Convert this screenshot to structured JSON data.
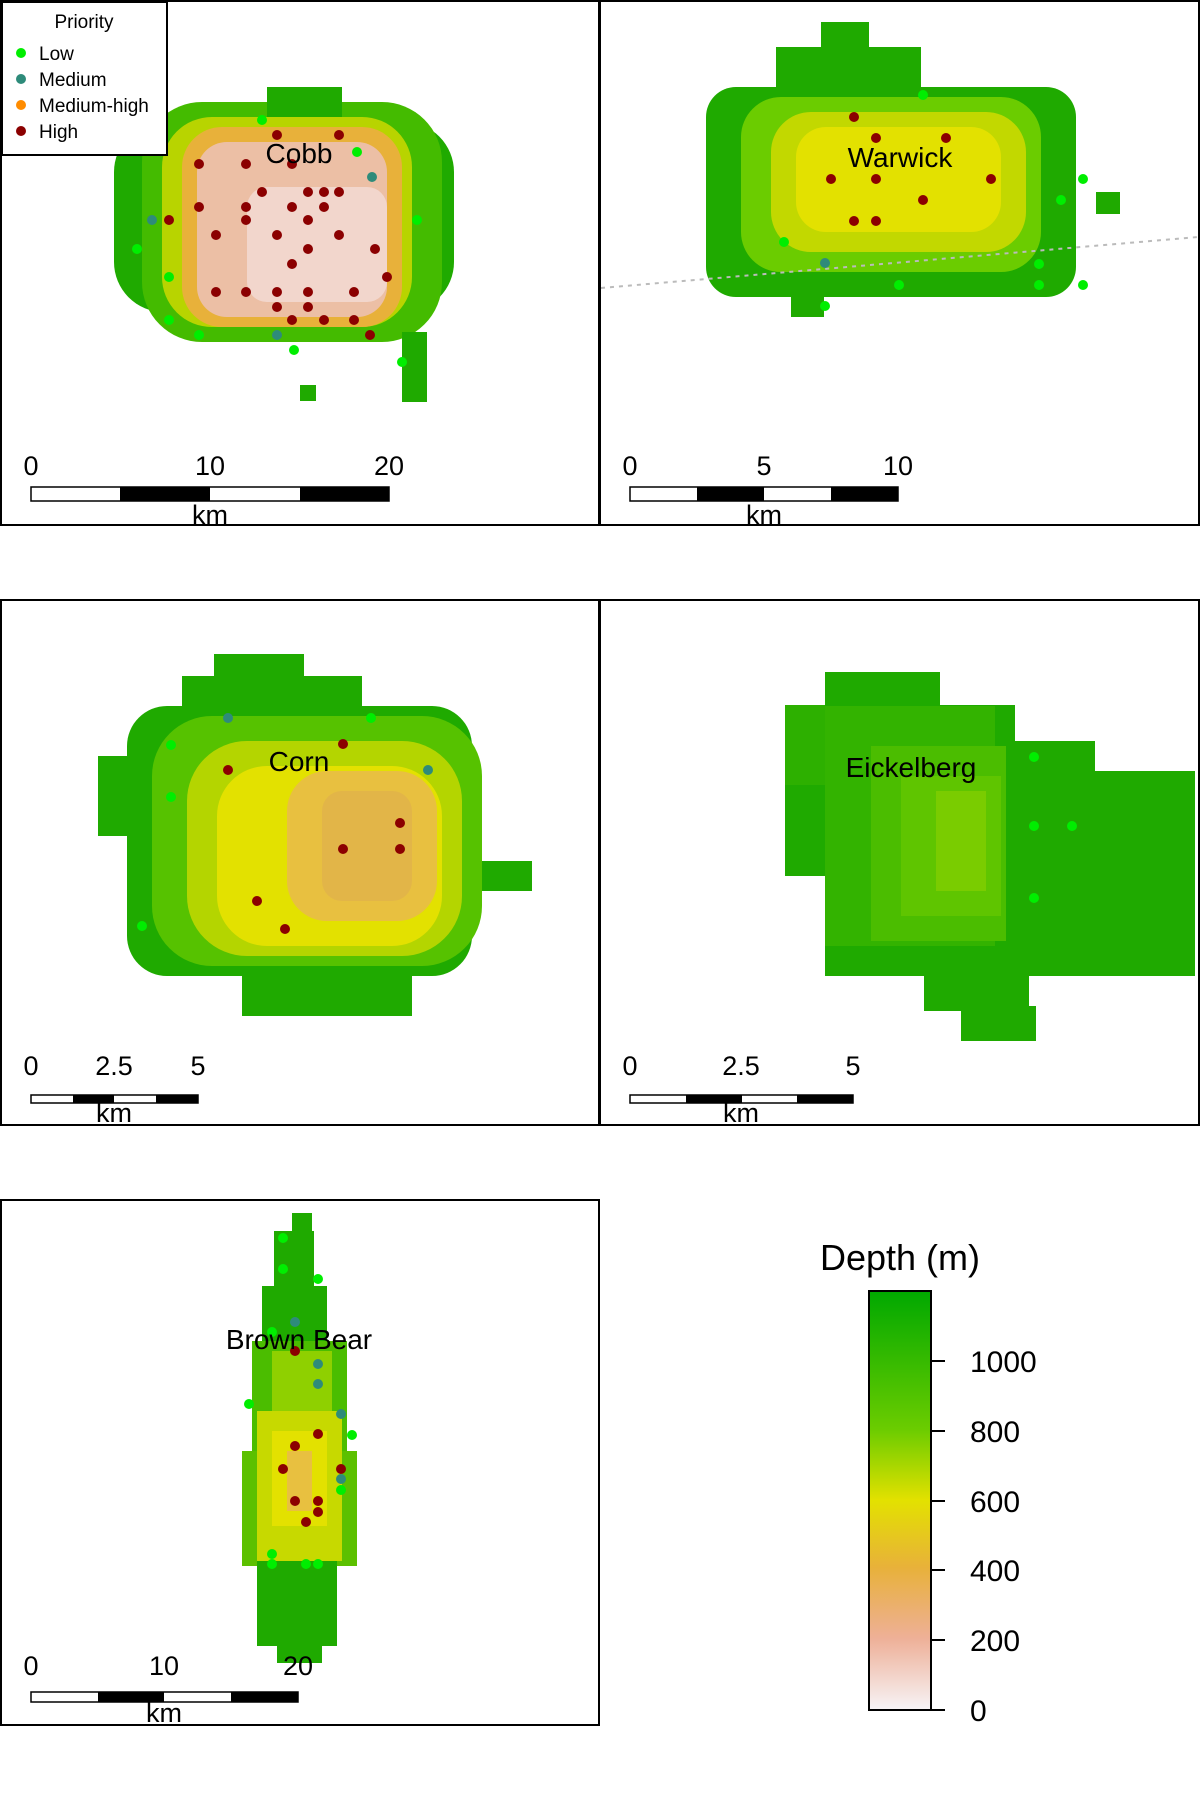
{
  "legend": {
    "title": "Priority",
    "items": [
      {
        "label": "Low",
        "color": "#00ee00"
      },
      {
        "label": "Medium",
        "color": "#2e8b7a"
      },
      {
        "label": "Medium-high",
        "color": "#ff8c00"
      },
      {
        "label": "High",
        "color": "#8b0000"
      }
    ]
  },
  "panels": [
    {
      "name": "Cobb",
      "scale_ticks": [
        "0",
        "10",
        "20"
      ],
      "scale_unit": "km"
    },
    {
      "name": "Warwick",
      "scale_ticks": [
        "0",
        "5",
        "10"
      ],
      "scale_unit": "km"
    },
    {
      "name": "Corn",
      "scale_ticks": [
        "0",
        "2.5",
        "5"
      ],
      "scale_unit": "km"
    },
    {
      "name": "Eickelberg",
      "scale_ticks": [
        "0",
        "2.5",
        "5"
      ],
      "scale_unit": "km"
    },
    {
      "name": "Brown Bear",
      "scale_ticks": [
        "0",
        "10",
        "20"
      ],
      "scale_unit": "km"
    }
  ],
  "colorbar": {
    "title": "Depth (m)",
    "ticks": [
      "1000",
      "800",
      "600",
      "400",
      "200",
      "0"
    ],
    "range": [
      0,
      1200
    ],
    "colors": [
      "#f7f4f7",
      "#eeb098",
      "#e8b13a",
      "#e3e100",
      "#6bcc00",
      "#00a800"
    ]
  }
}
